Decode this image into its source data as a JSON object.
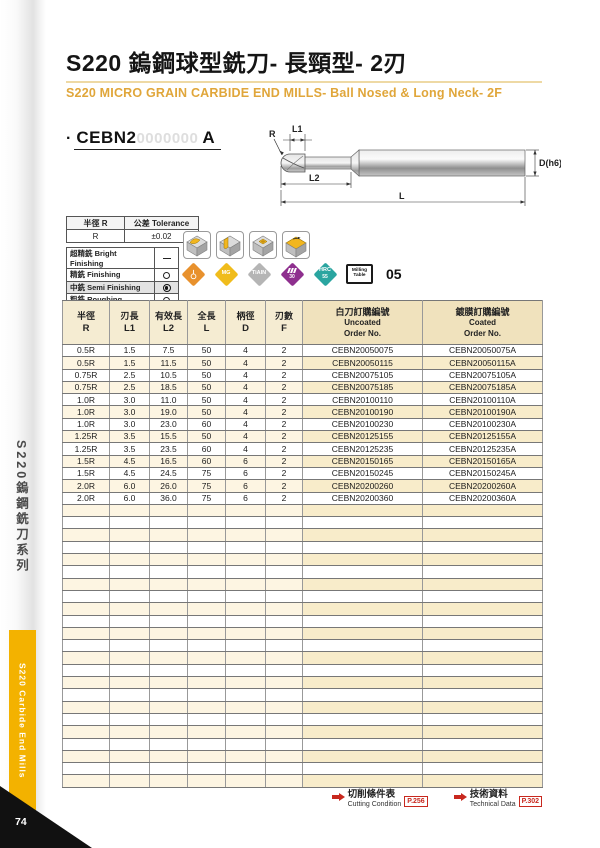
{
  "page": {
    "title": "S220 鎢鋼球型銑刀- 長頸型- 2刃",
    "subtitle": "S220 MICRO GRAIN CARBIDE END MILLS- Ball Nosed & Long Neck- 2F",
    "page_number": "74"
  },
  "sidebar": {
    "series_label_zh": "S220鎢鋼銑刀系列",
    "series_label_en": "S220 Carbide End Mills"
  },
  "colors": {
    "accent_gold": "#e0a63a",
    "sidebar_yellow": "#f3b200",
    "table_header_cream": "#f5ecd2",
    "row_cream": "#fdf5e2",
    "link_red": "#c8281e"
  },
  "model": {
    "dot": "·",
    "code": "CEBN2",
    "placeholder_digits": "0000000",
    "suffix": "A"
  },
  "drawing": {
    "labels": {
      "r": "R",
      "l1": "L1",
      "l2": "L2",
      "l": "L",
      "d": "D(h6)"
    }
  },
  "tolerance_table": {
    "header_radius": "半徑 R",
    "header_tolerance": "公差 Tolerance",
    "row_radius": "R",
    "row_tolerance": "±0.02"
  },
  "finishing_table": {
    "rows": [
      {
        "label": "超精銑 Bright Finishing",
        "mark": "dash",
        "selected": false
      },
      {
        "label": "精銑 Finishing",
        "mark": "circle",
        "selected": false
      },
      {
        "label": "中銑 Semi Finishing",
        "mark": "target",
        "selected": true
      },
      {
        "label": "粗銑 Roughing",
        "mark": "circle",
        "selected": false
      }
    ]
  },
  "icons": {
    "operation_icons": [
      "contour-milling-icon",
      "slot-milling-icon",
      "pocket-milling-icon",
      "face-milling-icon"
    ],
    "badge_endmill": "ball-end-mill-icon",
    "badge_mg": "MG",
    "badge_coating": "TiAlN",
    "badge_helix_angle": "30",
    "badge_hardness_line1": "HRC",
    "badge_hardness_line2": "55",
    "milling_table_line1": "Milling",
    "milling_table_line2": "Table",
    "milling_table_no": "05"
  },
  "table": {
    "headers": [
      {
        "zh": "半徑",
        "code": "R"
      },
      {
        "zh": "刃長",
        "code": "L1"
      },
      {
        "zh": "有效長",
        "code": "L2"
      },
      {
        "zh": "全長",
        "code": "L"
      },
      {
        "zh": "柄徑",
        "code": "D"
      },
      {
        "zh": "刃數",
        "code": "F"
      },
      {
        "zh": "白刀訂購編號",
        "en": "Uncoated",
        "sub": "Order No."
      },
      {
        "zh": "鍍膜訂購編號",
        "en": "Coated",
        "sub": "Order No."
      }
    ],
    "rows": [
      [
        "0.5R",
        "1.5",
        "7.5",
        "50",
        "4",
        "2",
        "CEBN20050075",
        "CEBN20050075A"
      ],
      [
        "0.5R",
        "1.5",
        "11.5",
        "50",
        "4",
        "2",
        "CEBN20050115",
        "CEBN20050115A"
      ],
      [
        "0.75R",
        "2.5",
        "10.5",
        "50",
        "4",
        "2",
        "CEBN20075105",
        "CEBN20075105A"
      ],
      [
        "0.75R",
        "2.5",
        "18.5",
        "50",
        "4",
        "2",
        "CEBN20075185",
        "CEBN20075185A"
      ],
      [
        "1.0R",
        "3.0",
        "11.0",
        "50",
        "4",
        "2",
        "CEBN20100110",
        "CEBN20100110A"
      ],
      [
        "1.0R",
        "3.0",
        "19.0",
        "50",
        "4",
        "2",
        "CEBN20100190",
        "CEBN20100190A"
      ],
      [
        "1.0R",
        "3.0",
        "23.0",
        "60",
        "4",
        "2",
        "CEBN20100230",
        "CEBN20100230A"
      ],
      [
        "1.25R",
        "3.5",
        "15.5",
        "50",
        "4",
        "2",
        "CEBN20125155",
        "CEBN20125155A"
      ],
      [
        "1.25R",
        "3.5",
        "23.5",
        "60",
        "4",
        "2",
        "CEBN20125235",
        "CEBN20125235A"
      ],
      [
        "1.5R",
        "4.5",
        "16.5",
        "60",
        "6",
        "2",
        "CEBN20150165",
        "CEBN20150165A"
      ],
      [
        "1.5R",
        "4.5",
        "24.5",
        "75",
        "6",
        "2",
        "CEBN20150245",
        "CEBN20150245A"
      ],
      [
        "2.0R",
        "6.0",
        "26.0",
        "75",
        "6",
        "2",
        "CEBN20200260",
        "CEBN20200260A"
      ],
      [
        "2.0R",
        "6.0",
        "36.0",
        "75",
        "6",
        "2",
        "CEBN20200360",
        "CEBN20200360A"
      ]
    ],
    "empty_row_count": 23
  },
  "footer_links": [
    {
      "zh": "切削條件表",
      "en": "Cutting Condition",
      "page": "P.256"
    },
    {
      "zh": "技術資料",
      "en": "Technical Data",
      "page": "P.302"
    }
  ]
}
